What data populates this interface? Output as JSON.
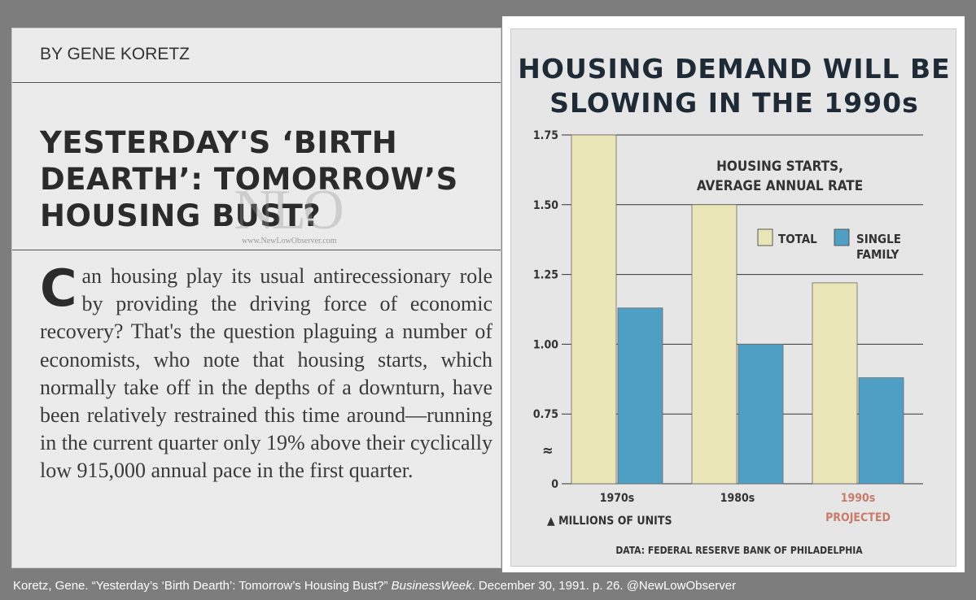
{
  "article": {
    "byline": "BY GENE KORETZ",
    "headline_lines": [
      "YESTERDAY'S ‘BIRTH",
      "DEARTH’: TOMORROW’S",
      "HOUSING BUST?"
    ],
    "watermark_mark": "NLO",
    "watermark_url": "www.NewLowObserver.com",
    "dropcap": "C",
    "body_after_dropcap": "an housing play its usual antirecessionary role by providing the driving force of economic recovery? That's the question plaguing a number of economists, who note that housing starts, which normally take off in the depths of a downturn, have been relatively restrained this time around—running in the current quarter only 19% above their cyclically low 915,000 annual pace in the first quarter."
  },
  "chart_title_lines": [
    "HOUSING DEMAND WILL BE",
    "SLOWING IN THE 1990s"
  ],
  "chart_data": {
    "type": "bar",
    "subtitle_lines": [
      "HOUSING STARTS,",
      "AVERAGE ANNUAL RATE"
    ],
    "categories": [
      "1970s",
      "1980s",
      "1990s"
    ],
    "category_note": "PROJECTED",
    "series": [
      {
        "name": "TOTAL",
        "color": "#ebe6b8",
        "values": [
          1.75,
          1.5,
          1.22
        ]
      },
      {
        "name": "SINGLE FAMILY",
        "name_lines": [
          "SINGLE",
          "FAMILY"
        ],
        "color": "#4f9ec4",
        "values": [
          1.13,
          1.0,
          0.88
        ]
      }
    ],
    "y_ticks": [
      "1.75",
      "1.50",
      "1.25",
      "1.00",
      "0.75",
      "0"
    ],
    "y_tick_values": [
      1.75,
      1.5,
      1.25,
      1.0,
      0.75,
      0.5
    ],
    "ylim": [
      0.5,
      1.75
    ],
    "axis_break": true,
    "grid": true,
    "unit_label": "▲ MILLIONS OF UNITS",
    "source": "DATA: FEDERAL RESERVE BANK OF PHILADELPHIA",
    "legend_position": "top-right",
    "projected_color": "#c87b6b"
  },
  "caption": {
    "prefix": "Koretz, Gene. “Yesterday’s ‘Birth Dearth’: Tomorrow’s Housing Bust?” ",
    "publication": "BusinessWeek",
    "suffix": ". December 30, 1991. p. 26. @NewLowObserver"
  }
}
